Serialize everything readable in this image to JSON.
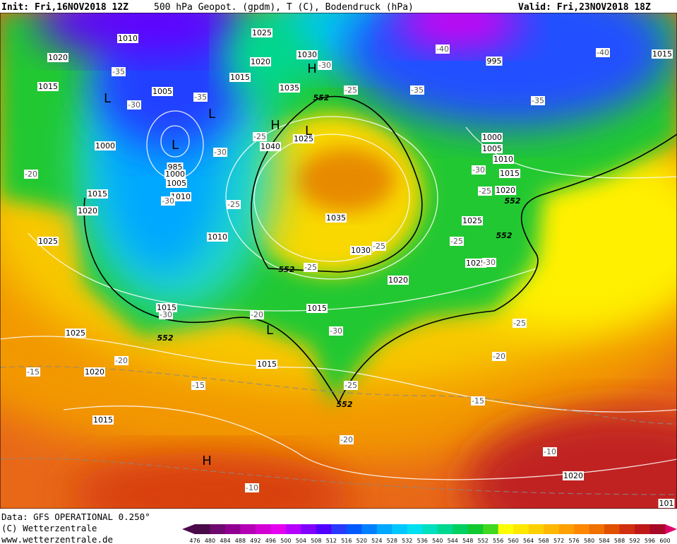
{
  "header": {
    "init": "Init: Fri,16NOV2018 12Z",
    "title": "500 hPa Geopot. (gpdm), T (C), Bodendruck (hPa)",
    "valid": "Valid: Fri,23NOV2018 18Z"
  },
  "footer": {
    "source": "Data: GFS OPERATIONAL 0.250°",
    "copyright": "(C) Wetterzentrale",
    "url": "www.wetterzentrale.de"
  },
  "colorbar": {
    "ticks": [
      476,
      480,
      484,
      488,
      492,
      496,
      500,
      504,
      508,
      512,
      516,
      520,
      524,
      528,
      532,
      536,
      540,
      544,
      548,
      552,
      556,
      560,
      564,
      568,
      572,
      576,
      580,
      584,
      588,
      592,
      596,
      600
    ],
    "colors": [
      "#4a0a4a",
      "#6e0a6e",
      "#900090",
      "#b400b4",
      "#d200d2",
      "#e600f0",
      "#b400ff",
      "#8000ff",
      "#5000ff",
      "#2838ff",
      "#0058ff",
      "#0080ff",
      "#00a8ff",
      "#00c8ff",
      "#00e0f0",
      "#00e0c0",
      "#00d890",
      "#00d060",
      "#10c830",
      "#40d820",
      "#ffff00",
      "#ffe800",
      "#ffd000",
      "#ffb800",
      "#ffa000",
      "#ff8800",
      "#f07000",
      "#e05000",
      "#d03010",
      "#c01818",
      "#a80828"
    ]
  },
  "map": {
    "isobar_labels": [
      "1010",
      "1025",
      "1020",
      "1030",
      "1020",
      "1015",
      "1015",
      "1005",
      "1035",
      "995",
      "1015",
      "1000",
      "1040",
      "1025",
      "1000",
      "1005",
      "1010",
      "985",
      "1000",
      "1005",
      "1010",
      "1015",
      "1020",
      "1015",
      "1020",
      "1035",
      "1025",
      "1025",
      "1010",
      "1030",
      "1025",
      "1020",
      "1015",
      "1015",
      "1025",
      "1020",
      "1015",
      "1015",
      "1020",
      "101"
    ],
    "temperature_labels": [
      "-35",
      "-30",
      "-35",
      "-25",
      "-35",
      "-40",
      "-40",
      "-35",
      "-30",
      "-25",
      "-30",
      "-20",
      "-30",
      "-25",
      "-30",
      "-25",
      "-25",
      "-25",
      "-25",
      "-30",
      "-30",
      "-20",
      "-30",
      "-25",
      "-20",
      "-15",
      "-15",
      "-20",
      "-25",
      "-15",
      "-20",
      "-10",
      "-10"
    ],
    "contour_552_labels": [
      "552",
      "552",
      "552",
      "552",
      "552",
      "552"
    ],
    "pressure_centers": [
      "L",
      "L",
      "L",
      "H",
      "L",
      "H",
      "L",
      "H"
    ]
  }
}
